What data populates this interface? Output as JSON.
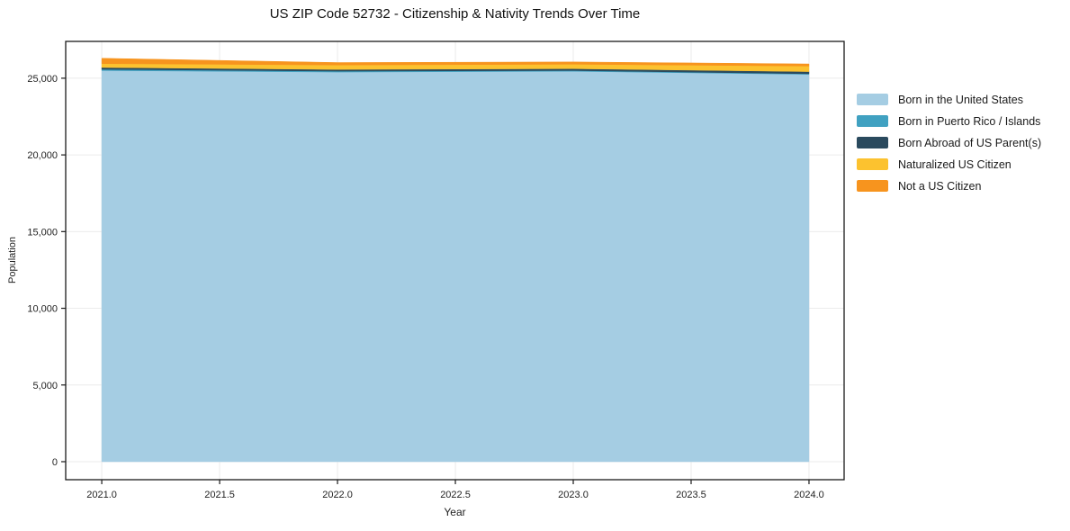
{
  "figure": {
    "background_color": "#ffffff"
  },
  "chart_data": {
    "type": "area",
    "stacked": true,
    "title": "US ZIP Code 52732 - Citizenship & Nativity Trends Over Time",
    "xlabel": "Year",
    "ylabel": "Population",
    "x": [
      2021,
      2022,
      2023,
      2024
    ],
    "series": [
      {
        "name": "Born in the United States",
        "color": "#a5cde3",
        "values": [
          25500,
          25400,
          25450,
          25250
        ]
      },
      {
        "name": "Born in Puerto Rico / Islands",
        "color": "#40a1c1",
        "values": [
          80,
          60,
          50,
          40
        ]
      },
      {
        "name": "Born Abroad of US Parent(s)",
        "color": "#2a4a5e",
        "values": [
          120,
          110,
          120,
          140
        ]
      },
      {
        "name": "Naturalized US Citizen",
        "color": "#fcc22f",
        "values": [
          250,
          290,
          290,
          360
        ]
      },
      {
        "name": "Not a US Citizen",
        "color": "#f7941e",
        "values": [
          350,
          160,
          150,
          140
        ]
      }
    ],
    "xlim": [
      2020.847,
      2024.149
    ],
    "ylim": [
      -1175,
      27400
    ],
    "xticks": [
      2021.0,
      2021.5,
      2022.0,
      2022.5,
      2023.0,
      2023.5,
      2024.0
    ],
    "xtick_labels": [
      "2021.0",
      "2021.5",
      "2022.0",
      "2022.5",
      "2023.0",
      "2023.5",
      "2024.0"
    ],
    "yticks": [
      0,
      5000,
      10000,
      15000,
      20000,
      25000
    ],
    "ytick_labels": [
      "0",
      "5,000",
      "10,000",
      "15,000",
      "20,000",
      "25,000"
    ],
    "grid": true,
    "legend_position": "right",
    "colors": {
      "grid": "#ebebeb",
      "spine": "#1a1a1a",
      "tick": "#1a1a1a",
      "text": "#1f1f1f",
      "background": "#ffffff"
    }
  }
}
